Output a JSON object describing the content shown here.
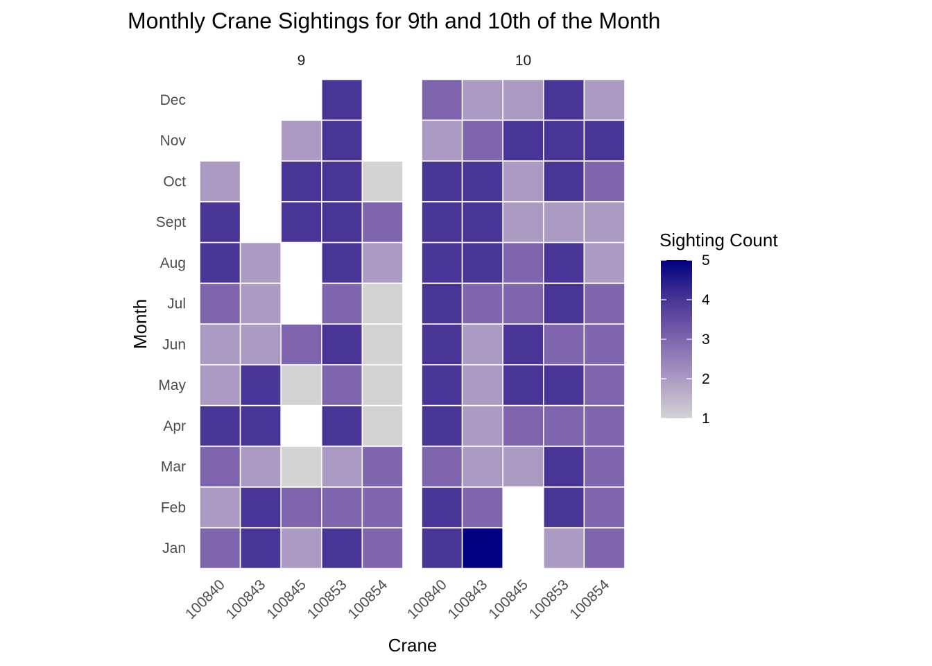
{
  "chart_data": {
    "type": "heatmap",
    "title": "Monthly Crane Sightings for 9th and 10th of the Month",
    "xlabel": "Crane",
    "ylabel": "Month",
    "categories_x": [
      "100840",
      "100843",
      "100845",
      "100853",
      "100854"
    ],
    "categories_y": [
      "Jan",
      "Feb",
      "Mar",
      "Apr",
      "May",
      "Jun",
      "Jul",
      "Aug",
      "Sept",
      "Oct",
      "Nov",
      "Dec"
    ],
    "legend": {
      "title": "Sighting Count",
      "ticks": [
        1,
        2,
        3,
        4,
        5
      ],
      "low_color": "#d3d3d3",
      "high_color": "#000080",
      "placement": "right"
    },
    "facets": [
      {
        "label": "9",
        "rows": [
          {
            "month": "Jan",
            "values": [
              3,
              4,
              2,
              4,
              3
            ]
          },
          {
            "month": "Feb",
            "values": [
              2,
              4,
              3,
              3,
              3
            ]
          },
          {
            "month": "Mar",
            "values": [
              3,
              2,
              1,
              2,
              3
            ]
          },
          {
            "month": "Apr",
            "values": [
              4,
              4,
              null,
              4,
              1
            ]
          },
          {
            "month": "May",
            "values": [
              2,
              4,
              1,
              3,
              1
            ]
          },
          {
            "month": "Jun",
            "values": [
              2,
              2,
              3,
              4,
              1
            ]
          },
          {
            "month": "Jul",
            "values": [
              3,
              2,
              null,
              3,
              1
            ]
          },
          {
            "month": "Aug",
            "values": [
              4,
              2,
              null,
              4,
              2
            ]
          },
          {
            "month": "Sept",
            "values": [
              4,
              null,
              4,
              4,
              3
            ]
          },
          {
            "month": "Oct",
            "values": [
              2,
              null,
              4,
              4,
              1
            ]
          },
          {
            "month": "Nov",
            "values": [
              null,
              null,
              2,
              4,
              null
            ]
          },
          {
            "month": "Dec",
            "values": [
              null,
              null,
              null,
              4,
              null
            ]
          }
        ]
      },
      {
        "label": "10",
        "rows": [
          {
            "month": "Jan",
            "values": [
              4,
              5,
              null,
              2,
              3
            ]
          },
          {
            "month": "Feb",
            "values": [
              4,
              3,
              null,
              4,
              3
            ]
          },
          {
            "month": "Mar",
            "values": [
              3,
              2,
              2,
              4,
              3
            ]
          },
          {
            "month": "Apr",
            "values": [
              4,
              2,
              3,
              3,
              3
            ]
          },
          {
            "month": "May",
            "values": [
              4,
              2,
              4,
              4,
              3
            ]
          },
          {
            "month": "Jun",
            "values": [
              4,
              2,
              4,
              3,
              3
            ]
          },
          {
            "month": "Jul",
            "values": [
              4,
              3,
              3,
              4,
              3
            ]
          },
          {
            "month": "Aug",
            "values": [
              4,
              4,
              3,
              4,
              2
            ]
          },
          {
            "month": "Sept",
            "values": [
              4,
              4,
              2,
              2,
              2
            ]
          },
          {
            "month": "Oct",
            "values": [
              4,
              4,
              2,
              4,
              3
            ]
          },
          {
            "month": "Nov",
            "values": [
              2,
              3,
              4,
              4,
              4
            ]
          },
          {
            "month": "Dec",
            "values": [
              3,
              2,
              2,
              4,
              2
            ]
          }
        ]
      }
    ]
  }
}
